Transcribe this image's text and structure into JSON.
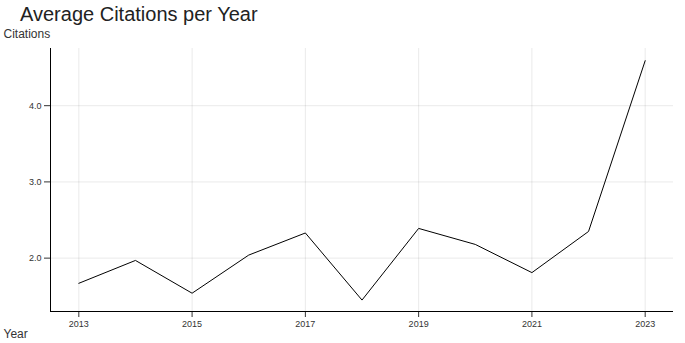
{
  "chart_data": {
    "type": "line",
    "title": "Average Citations per Year",
    "x_label": "Year",
    "y_label": "Citations",
    "x": [
      2013,
      2014,
      2015,
      2016,
      2017,
      2018,
      2019,
      2020,
      2021,
      2022,
      2023
    ],
    "values": [
      1.67,
      1.97,
      1.54,
      2.04,
      2.33,
      1.45,
      2.39,
      2.18,
      1.81,
      2.35,
      4.59
    ],
    "color": "#000000",
    "xlim": [
      2012.5,
      2023.5
    ],
    "xticks": [
      2013,
      2015,
      2017,
      2019,
      2021,
      2023
    ],
    "ylim": [
      1.3,
      4.75
    ],
    "yticks": [
      2,
      3,
      4
    ],
    "grid": true
  }
}
